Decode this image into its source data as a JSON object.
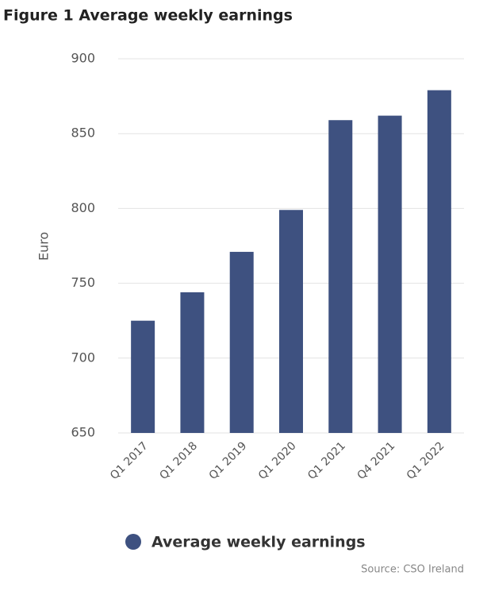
{
  "chart_data": {
    "type": "bar",
    "title": "Figure 1 Average weekly earnings",
    "y_label": "Euro",
    "categories": [
      "Q1 2017",
      "Q1 2018",
      "Q1 2019",
      "Q1 2020",
      "Q1 2021",
      "Q4 2021",
      "Q1 2022"
    ],
    "series": [
      {
        "name": "Average weekly earnings",
        "color": "#3e5180",
        "values": [
          725,
          744,
          771,
          799,
          859,
          862,
          879
        ]
      }
    ],
    "ylim": [
      650,
      900
    ],
    "yticks": [
      650,
      700,
      750,
      800,
      850,
      900
    ],
    "grid": true,
    "legend": "bottom",
    "source": "Source: CSO Ireland"
  }
}
